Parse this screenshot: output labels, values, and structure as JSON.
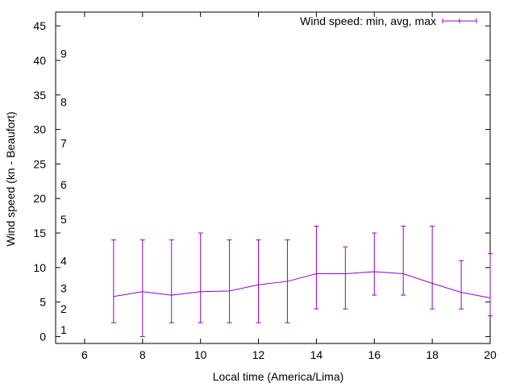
{
  "chart_data": {
    "type": "line",
    "title": "",
    "xlabel": "Local time (America/Lima)",
    "ylabel": "Wind speed (kn - Beaufort)",
    "xlim": [
      5,
      20
    ],
    "ylim": [
      -1,
      47
    ],
    "xticks": [
      6,
      8,
      10,
      12,
      14,
      16,
      18,
      20
    ],
    "yticks": [
      0,
      5,
      10,
      15,
      20,
      25,
      30,
      35,
      40,
      45
    ],
    "grid": false,
    "legend_position": "top-right",
    "series": [
      {
        "name": "Wind speed: min, avg, max",
        "color": "#9400d3",
        "x": [
          7,
          8,
          9,
          10,
          11,
          12,
          13,
          14,
          15,
          16,
          17,
          18,
          19,
          20
        ],
        "avg": [
          5.8,
          6.5,
          6.0,
          6.5,
          6.6,
          7.5,
          8.0,
          9.1,
          9.1,
          9.4,
          9.1,
          7.7,
          6.4,
          5.6
        ],
        "min": [
          2,
          0,
          2,
          2,
          2,
          2,
          2,
          4,
          4,
          6,
          6,
          4,
          4,
          3
        ],
        "max": [
          14,
          14,
          14,
          15,
          14,
          14,
          14,
          16,
          13,
          15,
          16,
          16,
          11,
          12
        ]
      }
    ],
    "beaufort_scale": [
      {
        "label": "1",
        "value": 1
      },
      {
        "label": "2",
        "value": 4
      },
      {
        "label": "3",
        "value": 7
      },
      {
        "label": "4",
        "value": 11
      },
      {
        "label": "5",
        "value": 17
      },
      {
        "label": "6",
        "value": 22
      },
      {
        "label": "7",
        "value": 28
      },
      {
        "label": "8",
        "value": 34
      },
      {
        "label": "9",
        "value": 41
      }
    ]
  }
}
